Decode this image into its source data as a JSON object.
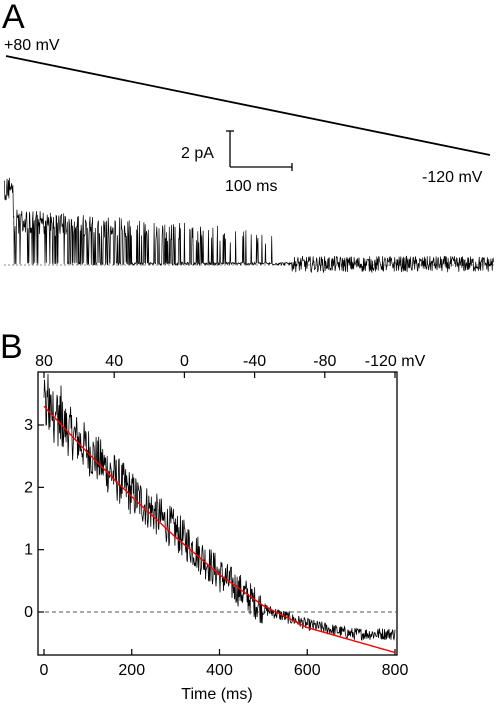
{
  "panel_a": {
    "letter": "A",
    "ramp_start_label": "+80 mV",
    "ramp_end_label": "-120 mV",
    "scalebar": {
      "current_label": "2 pA",
      "time_label": "100 ms"
    }
  },
  "panel_b": {
    "letter": "B"
  },
  "chart_data": [
    {
      "type": "line",
      "panel": "A",
      "description_of_marks": "Single-channel current recording during a voltage ramp from +80 mV to -120 mV; openings decline over the first half of the sweep",
      "ramp": {
        "from_mV": 80,
        "to_mV": -120
      },
      "scalebar": {
        "current_pA": 2,
        "time_ms": 100
      },
      "trace_envelope": {
        "x_ms": [
          0,
          50,
          100,
          150,
          200,
          250,
          300,
          350,
          400,
          450,
          500,
          550,
          600,
          650,
          700,
          750,
          800
        ],
        "mean_pA": [
          2.4,
          2.0,
          1.8,
          1.5,
          1.2,
          0.9,
          0.65,
          0.4,
          0.25,
          0.1,
          0.05,
          0.05,
          0.05,
          0.05,
          0.05,
          0.05,
          0.05
        ]
      }
    },
    {
      "type": "line",
      "panel": "B",
      "x": [
        0,
        100,
        200,
        300,
        400,
        500,
        600,
        700,
        800
      ],
      "series": [
        {
          "values": [
            3.3,
            2.6,
            1.9,
            1.3,
            0.6,
            0.05,
            -0.2,
            -0.35,
            -0.35
          ],
          "color": "#000000"
        },
        {
          "values": [
            3.3,
            2.55,
            1.85,
            1.2,
            0.6,
            0.1,
            -0.25,
            -0.45,
            -0.65
          ],
          "color": "#ff0000"
        }
      ],
      "xlabel": "Time (ms)",
      "x_ticks": [
        "0",
        "200",
        "400",
        "600",
        "800"
      ],
      "xlim": [
        -5,
        805
      ],
      "ylim": [
        -0.65,
        3.9
      ],
      "y_ticks": [
        "3",
        "2",
        "1",
        "0"
      ],
      "top_axis_ticks": [
        "80",
        "40",
        "0",
        "-40",
        "-80",
        "-120 mV"
      ],
      "zero_line": {
        "y": 0,
        "style": "dashed"
      },
      "grid": false
    }
  ]
}
